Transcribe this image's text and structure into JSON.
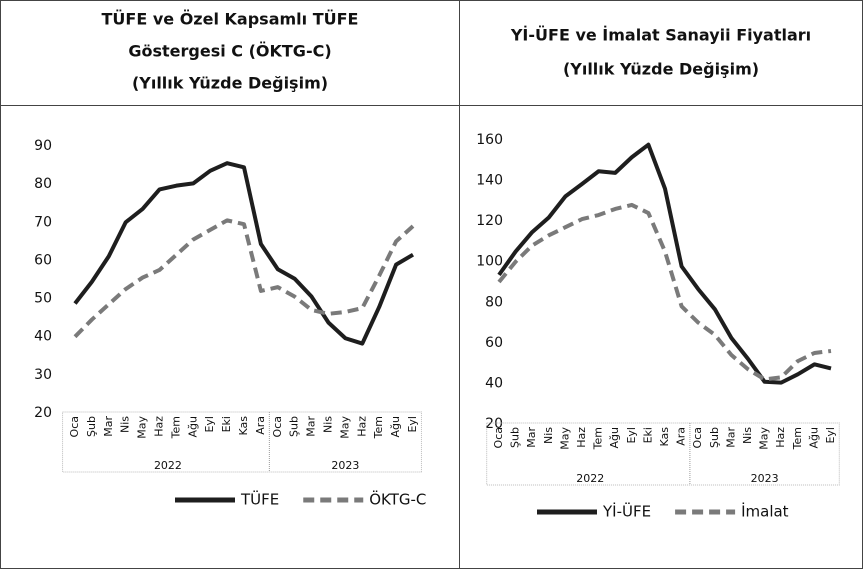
{
  "chart_data": [
    {
      "type": "line",
      "title": [
        "TÜFE ve Özel Kapsamlı TÜFE",
        "Göstergesi C (ÖKTG-C)",
        "(Yıllık Yüzde Değişim)"
      ],
      "categories": [
        "Oca",
        "Şub",
        "Mar",
        "Nis",
        "May",
        "Haz",
        "Tem",
        "Ağu",
        "Eyl",
        "Eki",
        "Kas",
        "Ara",
        "Oca",
        "Şub",
        "Mar",
        "Nis",
        "May",
        "Haz",
        "Tem",
        "Ağu",
        "Eyl"
      ],
      "groups": [
        {
          "label": "2022",
          "size": 12
        },
        {
          "label": "2023",
          "size": 9
        }
      ],
      "ylim": [
        20,
        90
      ],
      "yticks": [
        20,
        30,
        40,
        50,
        60,
        70,
        80,
        90
      ],
      "series": [
        {
          "name": "TÜFE",
          "color": "#1e1e1e",
          "dashed": false,
          "values": [
            48.7,
            54.4,
            61.1,
            70.0,
            73.5,
            78.6,
            79.6,
            80.2,
            83.5,
            85.5,
            84.4,
            64.3,
            57.7,
            55.2,
            50.5,
            43.7,
            39.6,
            38.2,
            47.8,
            58.9,
            61.5
          ]
        },
        {
          "name": "ÖKTG-C",
          "color": "#7a7a7a",
          "dashed": true,
          "values": [
            40.0,
            44.5,
            48.5,
            52.5,
            55.5,
            57.5,
            61.5,
            65.5,
            68.0,
            70.5,
            69.5,
            52.0,
            53.0,
            50.5,
            47.0,
            46.0,
            46.5,
            47.5,
            56.0,
            65.0,
            69.0
          ]
        }
      ]
    },
    {
      "type": "line",
      "title": [
        "Yİ-ÜFE ve İmalat Sanayii Fiyatları",
        "(Yıllık Yüzde Değişim)"
      ],
      "categories": [
        "Oca",
        "Şub",
        "Mar",
        "Nis",
        "May",
        "Haz",
        "Tem",
        "Ağu",
        "Eyl",
        "Eki",
        "Kas",
        "Ara",
        "Oca",
        "Şub",
        "Mar",
        "Nis",
        "May",
        "Haz",
        "Tem",
        "Ağu",
        "Eyl"
      ],
      "groups": [
        {
          "label": "2022",
          "size": 12
        },
        {
          "label": "2023",
          "size": 9
        }
      ],
      "ylim": [
        20,
        160
      ],
      "yticks": [
        20,
        40,
        60,
        80,
        100,
        120,
        140,
        160
      ],
      "series": [
        {
          "name": "Yİ-ÜFE",
          "color": "#1e1e1e",
          "dashed": false,
          "values": [
            93.5,
            105.0,
            114.6,
            121.8,
            132.2,
            138.3,
            144.6,
            143.8,
            151.5,
            157.7,
            136.0,
            97.7,
            86.5,
            76.6,
            62.4,
            52.1,
            40.8,
            40.4,
            44.5,
            49.4,
            47.4
          ]
        },
        {
          "name": "İmalat",
          "color": "#7a7a7a",
          "dashed": true,
          "values": [
            90,
            100,
            108,
            113,
            117,
            121,
            123,
            126,
            128,
            124,
            105,
            78,
            70,
            64,
            54,
            47,
            42,
            43,
            51,
            55,
            56
          ]
        }
      ]
    }
  ]
}
